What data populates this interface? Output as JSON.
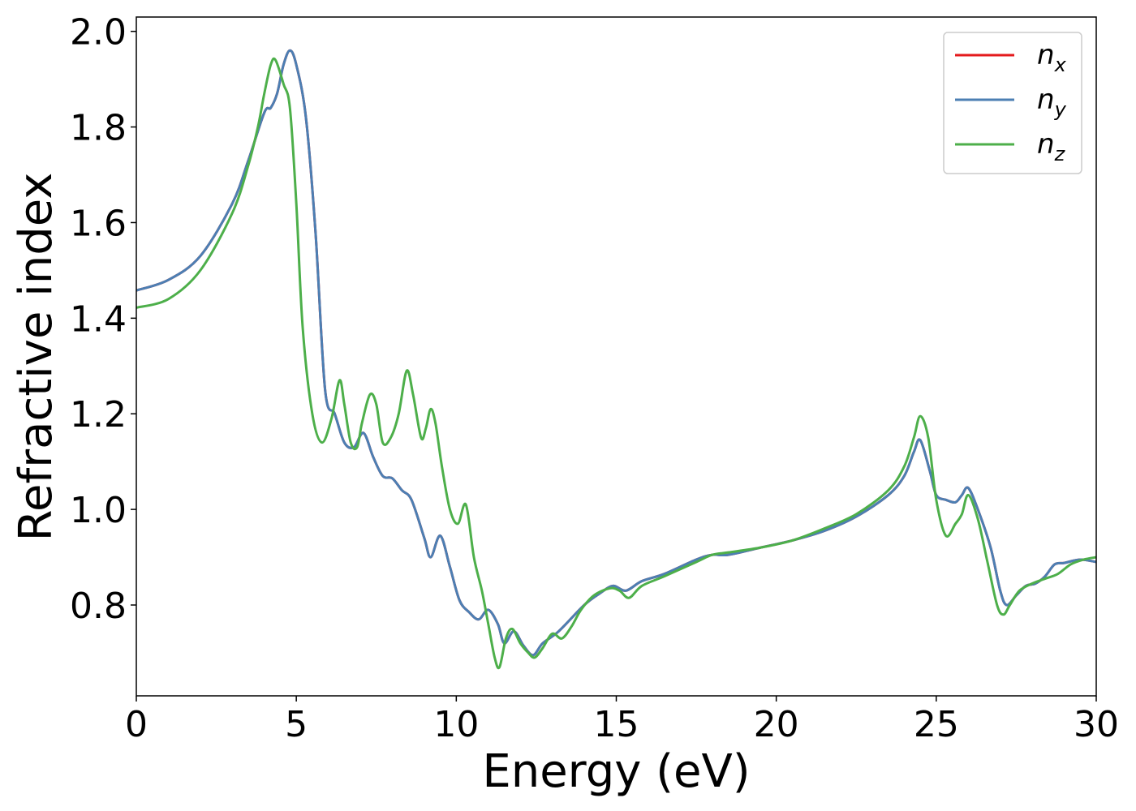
{
  "chart_data": {
    "type": "line",
    "xlabel": "Energy (eV)",
    "ylabel": "Refractive index",
    "xlim": [
      0,
      30
    ],
    "ylim": [
      0.61,
      2.03
    ],
    "xticks": [
      0,
      5,
      10,
      15,
      20,
      25,
      30
    ],
    "xtick_labels": [
      "0",
      "5",
      "10",
      "15",
      "20",
      "25",
      "30"
    ],
    "yticks": [
      0.8,
      1.0,
      1.2,
      1.4,
      1.6,
      1.8,
      2.0
    ],
    "ytick_labels": [
      "0.8",
      "1.0",
      "1.2",
      "1.4",
      "1.6",
      "1.8",
      "2.0"
    ],
    "grid": false,
    "legend_position": "top-right",
    "series": [
      {
        "name": "n_x",
        "label_base": "n",
        "label_sub": "x",
        "color": "#e41a1c",
        "x": [
          0,
          1,
          2,
          3,
          3.5,
          4.0,
          4.2,
          4.4,
          4.6,
          4.8,
          5.0,
          5.3,
          5.6,
          5.9,
          6.2,
          6.5,
          6.8,
          7.1,
          7.4,
          7.7,
          8.0,
          8.3,
          8.6,
          9.0,
          9.2,
          9.5,
          9.8,
          10.1,
          10.4,
          10.7,
          11.0,
          11.3,
          11.5,
          11.8,
          12.1,
          12.4,
          12.7,
          13.2,
          14.0,
          14.5,
          14.9,
          15.3,
          15.8,
          16.5,
          17.5,
          18.0,
          18.5,
          19.5,
          20.5,
          21.5,
          22.5,
          23.5,
          24.0,
          24.3,
          24.5,
          24.8,
          25.0,
          25.3,
          25.6,
          25.8,
          26.0,
          26.3,
          26.7,
          27.0,
          27.2,
          27.5,
          27.8,
          28.1,
          28.4,
          28.7,
          29.0,
          29.5,
          30.0
        ],
        "y": [
          1.458,
          1.48,
          1.53,
          1.64,
          1.73,
          1.83,
          1.84,
          1.87,
          1.93,
          1.96,
          1.93,
          1.82,
          1.58,
          1.25,
          1.2,
          1.14,
          1.13,
          1.16,
          1.11,
          1.07,
          1.065,
          1.04,
          1.02,
          0.94,
          0.9,
          0.945,
          0.88,
          0.81,
          0.785,
          0.77,
          0.79,
          0.76,
          0.72,
          0.745,
          0.715,
          0.695,
          0.72,
          0.745,
          0.8,
          0.825,
          0.84,
          0.83,
          0.85,
          0.865,
          0.895,
          0.905,
          0.905,
          0.92,
          0.935,
          0.955,
          0.985,
          1.03,
          1.07,
          1.12,
          1.145,
          1.08,
          1.03,
          1.02,
          1.015,
          1.03,
          1.045,
          1.0,
          0.92,
          0.83,
          0.8,
          0.82,
          0.84,
          0.845,
          0.86,
          0.885,
          0.888,
          0.895,
          0.89
        ]
      },
      {
        "name": "n_y",
        "label_base": "n",
        "label_sub": "y",
        "color": "#4c7fb3",
        "x": [
          0,
          1,
          2,
          3,
          3.5,
          4.0,
          4.2,
          4.4,
          4.6,
          4.8,
          5.0,
          5.3,
          5.6,
          5.9,
          6.2,
          6.5,
          6.8,
          7.1,
          7.4,
          7.7,
          8.0,
          8.3,
          8.6,
          9.0,
          9.2,
          9.5,
          9.8,
          10.1,
          10.4,
          10.7,
          11.0,
          11.3,
          11.5,
          11.8,
          12.1,
          12.4,
          12.7,
          13.2,
          14.0,
          14.5,
          14.9,
          15.3,
          15.8,
          16.5,
          17.5,
          18.0,
          18.5,
          19.5,
          20.5,
          21.5,
          22.5,
          23.5,
          24.0,
          24.3,
          24.5,
          24.8,
          25.0,
          25.3,
          25.6,
          25.8,
          26.0,
          26.3,
          26.7,
          27.0,
          27.2,
          27.5,
          27.8,
          28.1,
          28.4,
          28.7,
          29.0,
          29.5,
          30.0
        ],
        "y": [
          1.458,
          1.48,
          1.53,
          1.64,
          1.73,
          1.83,
          1.84,
          1.87,
          1.93,
          1.96,
          1.93,
          1.82,
          1.58,
          1.25,
          1.2,
          1.14,
          1.13,
          1.16,
          1.11,
          1.07,
          1.065,
          1.04,
          1.02,
          0.94,
          0.9,
          0.945,
          0.88,
          0.81,
          0.785,
          0.77,
          0.79,
          0.76,
          0.72,
          0.745,
          0.715,
          0.695,
          0.72,
          0.745,
          0.8,
          0.825,
          0.84,
          0.83,
          0.85,
          0.865,
          0.895,
          0.905,
          0.905,
          0.92,
          0.935,
          0.955,
          0.985,
          1.03,
          1.07,
          1.12,
          1.145,
          1.08,
          1.03,
          1.02,
          1.015,
          1.03,
          1.045,
          1.0,
          0.92,
          0.83,
          0.8,
          0.82,
          0.84,
          0.845,
          0.86,
          0.885,
          0.888,
          0.895,
          0.89
        ]
      },
      {
        "name": "n_z",
        "label_base": "n",
        "label_sub": "z",
        "color": "#4daf4a",
        "x": [
          0,
          1,
          2,
          3,
          3.5,
          3.8,
          4.0,
          4.2,
          4.35,
          4.6,
          4.8,
          5.0,
          5.2,
          5.5,
          5.8,
          6.1,
          6.35,
          6.5,
          6.7,
          6.9,
          7.05,
          7.3,
          7.5,
          7.7,
          7.95,
          8.2,
          8.45,
          8.65,
          8.9,
          9.05,
          9.2,
          9.35,
          9.55,
          9.8,
          10.05,
          10.3,
          10.55,
          10.8,
          11.0,
          11.2,
          11.35,
          11.55,
          11.75,
          12.0,
          12.25,
          12.45,
          12.7,
          13.0,
          13.3,
          13.6,
          13.9,
          14.3,
          14.8,
          15.1,
          15.4,
          15.8,
          16.5,
          17.5,
          18.0,
          18.5,
          19.5,
          20.5,
          21.5,
          22.5,
          23.5,
          24.0,
          24.3,
          24.5,
          24.75,
          25.0,
          25.3,
          25.6,
          25.8,
          26.0,
          26.3,
          26.6,
          26.9,
          27.1,
          27.3,
          27.6,
          28.0,
          28.4,
          28.8,
          29.2,
          29.6,
          30.0
        ],
        "y": [
          1.422,
          1.44,
          1.5,
          1.62,
          1.72,
          1.8,
          1.87,
          1.93,
          1.94,
          1.89,
          1.84,
          1.64,
          1.38,
          1.2,
          1.14,
          1.19,
          1.27,
          1.22,
          1.14,
          1.13,
          1.18,
          1.24,
          1.22,
          1.14,
          1.15,
          1.2,
          1.29,
          1.24,
          1.15,
          1.17,
          1.21,
          1.18,
          1.09,
          1.0,
          0.97,
          1.01,
          0.9,
          0.83,
          0.76,
          0.69,
          0.67,
          0.73,
          0.75,
          0.72,
          0.7,
          0.69,
          0.71,
          0.74,
          0.73,
          0.755,
          0.79,
          0.82,
          0.835,
          0.83,
          0.815,
          0.84,
          0.86,
          0.89,
          0.905,
          0.91,
          0.92,
          0.935,
          0.96,
          0.99,
          1.04,
          1.09,
          1.15,
          1.195,
          1.15,
          1.02,
          0.945,
          0.97,
          0.99,
          1.03,
          0.98,
          0.89,
          0.8,
          0.78,
          0.8,
          0.83,
          0.845,
          0.855,
          0.865,
          0.885,
          0.895,
          0.9
        ]
      }
    ]
  }
}
